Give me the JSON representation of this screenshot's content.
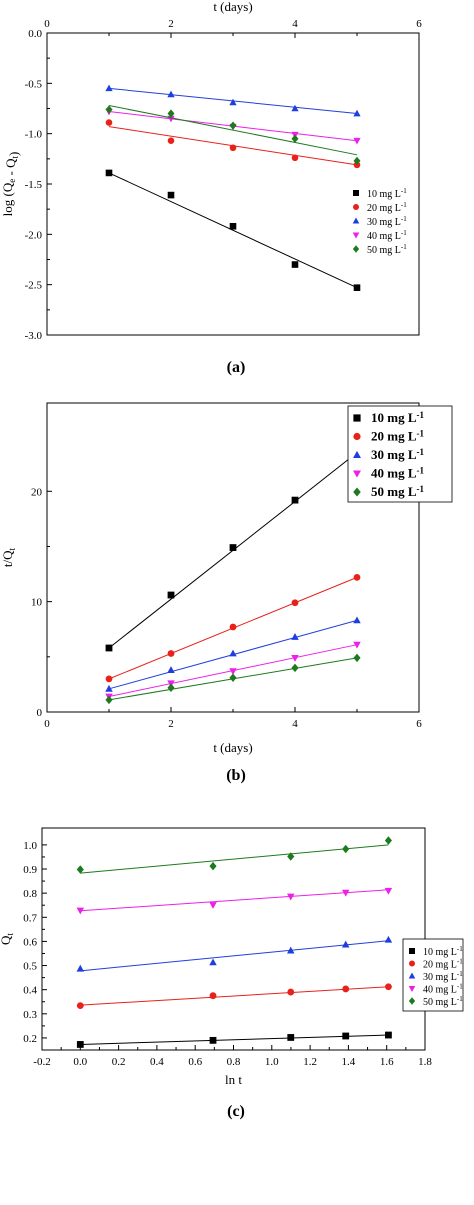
{
  "chart_data": [
    {
      "type": "scatter",
      "panel_label": "(a)",
      "xlabel": "t (days)",
      "ylabel": "log (Q_e - Q_t)",
      "ylabel_parts": [
        "log (Q",
        "e",
        " - Q",
        "t",
        ")"
      ],
      "x_axis_position": "top",
      "xlim": [
        0,
        6
      ],
      "ylim": [
        -3.0,
        0.0
      ],
      "xticks": [
        0,
        2,
        4,
        6
      ],
      "yticks": [
        0.0,
        -0.5,
        -1.0,
        -1.5,
        -2.0,
        -2.5,
        -3.0
      ],
      "ytick_labels": [
        "0.0",
        "-0.5",
        "-1.0",
        "-1.5",
        "-2.0",
        "-2.5",
        "-3.0"
      ],
      "legend_position": "right",
      "series": [
        {
          "name": "10 mg L-1",
          "unit_base": "10 mg L",
          "unit_sup": "-1",
          "marker": "square",
          "color": "#000000",
          "x": [
            1,
            2,
            3,
            4,
            5
          ],
          "y": [
            -1.39,
            -1.61,
            -1.92,
            -2.3,
            -2.53
          ],
          "fit": [
            [
              1,
              -1.39
            ],
            [
              5,
              -2.53
            ]
          ]
        },
        {
          "name": "20 mg L-1",
          "unit_base": "20 mg L",
          "unit_sup": "-1",
          "marker": "circle",
          "color": "#e8211b",
          "x": [
            1,
            2,
            3,
            4,
            5
          ],
          "y": [
            -0.89,
            -1.07,
            -1.14,
            -1.24,
            -1.31
          ],
          "fit": [
            [
              1,
              -0.93
            ],
            [
              5,
              -1.31
            ]
          ]
        },
        {
          "name": "30 mg L-1",
          "unit_base": "30 mg L",
          "unit_sup": "-1",
          "marker": "triangle-up",
          "color": "#1f3ee0",
          "x": [
            1,
            2,
            3,
            4,
            5
          ],
          "y": [
            -0.55,
            -0.61,
            -0.69,
            -0.75,
            -0.8
          ],
          "fit": [
            [
              1,
              -0.55
            ],
            [
              5,
              -0.8
            ]
          ]
        },
        {
          "name": "40 mg L-1",
          "unit_base": "40 mg L",
          "unit_sup": "-1",
          "marker": "triangle-down",
          "color": "#ee1fe8",
          "x": [
            1,
            2,
            3,
            4,
            5
          ],
          "y": [
            -0.78,
            -0.85,
            -0.93,
            -1.01,
            -1.07
          ],
          "fit": [
            [
              1,
              -0.78
            ],
            [
              5,
              -1.07
            ]
          ]
        },
        {
          "name": "50 mg L-1",
          "unit_base": "50 mg L",
          "unit_sup": "-1",
          "marker": "diamond",
          "color": "#1d7a1d",
          "x": [
            1,
            2,
            3,
            4,
            5
          ],
          "y": [
            -0.76,
            -0.8,
            -0.92,
            -1.05,
            -1.27
          ],
          "fit": [
            [
              1,
              -0.72
            ],
            [
              5,
              -1.21
            ]
          ]
        }
      ]
    },
    {
      "type": "scatter",
      "panel_label": "(b)",
      "xlabel": "t (days)",
      "ylabel": "t/Q_t",
      "ylabel_parts": [
        "t/Q",
        "t",
        "",
        "",
        ""
      ],
      "x_axis_position": "bottom",
      "xlim": [
        0,
        6
      ],
      "ylim": [
        0,
        28
      ],
      "xticks": [
        0,
        2,
        4,
        6
      ],
      "yticks": [
        0,
        10,
        20
      ],
      "ytick_labels": [
        "0",
        "10",
        "20"
      ],
      "legend_position": "top-right",
      "series": [
        {
          "name": "10 mg L-1",
          "unit_base": "10 mg L",
          "unit_sup": "-1",
          "marker": "square",
          "color": "#000000",
          "x": [
            1,
            2,
            3,
            4,
            5
          ],
          "y": [
            5.8,
            10.6,
            14.9,
            19.2,
            23.5
          ],
          "fit": [
            [
              1,
              5.8
            ],
            [
              5,
              23.5
            ]
          ]
        },
        {
          "name": "20 mg L-1",
          "unit_base": "20 mg L",
          "unit_sup": "-1",
          "marker": "circle",
          "color": "#e8211b",
          "x": [
            1,
            2,
            3,
            4,
            5
          ],
          "y": [
            3.0,
            5.3,
            7.7,
            9.9,
            12.2
          ],
          "fit": [
            [
              1,
              3.0
            ],
            [
              5,
              12.2
            ]
          ]
        },
        {
          "name": "30 mg L-1",
          "unit_base": "30 mg L",
          "unit_sup": "-1",
          "marker": "triangle-up",
          "color": "#1f3ee0",
          "x": [
            1,
            2,
            3,
            4,
            5
          ],
          "y": [
            2.1,
            3.8,
            5.3,
            6.8,
            8.3
          ],
          "fit": [
            [
              1,
              2.1
            ],
            [
              5,
              8.3
            ]
          ]
        },
        {
          "name": "40 mg L-1",
          "unit_base": "40 mg L",
          "unit_sup": "-1",
          "marker": "triangle-down",
          "color": "#ee1fe8",
          "x": [
            1,
            2,
            3,
            4,
            5
          ],
          "y": [
            1.4,
            2.6,
            3.7,
            4.9,
            6.1
          ],
          "fit": [
            [
              1,
              1.4
            ],
            [
              5,
              6.1
            ]
          ]
        },
        {
          "name": "50 mg L-1",
          "unit_base": "50 mg L",
          "unit_sup": "-1",
          "marker": "diamond",
          "color": "#1d7a1d",
          "x": [
            1,
            2,
            3,
            4,
            5
          ],
          "y": [
            1.1,
            2.2,
            3.1,
            4.0,
            4.9
          ],
          "fit": [
            [
              1,
              1.1
            ],
            [
              5,
              4.9
            ]
          ]
        }
      ]
    },
    {
      "type": "scatter",
      "panel_label": "(c)",
      "xlabel": "ln t",
      "ylabel": "Q_t",
      "ylabel_parts": [
        "Q",
        "t",
        "",
        "",
        ""
      ],
      "x_axis_position": "bottom",
      "xlim": [
        -0.2,
        1.8
      ],
      "ylim": [
        0.15,
        1.07
      ],
      "xticks": [
        -0.2,
        0.0,
        0.2,
        0.4,
        0.6,
        0.8,
        1.0,
        1.2,
        1.4,
        1.6,
        1.8
      ],
      "xtick_labels": [
        "-0.2",
        "0.0",
        "0.2",
        "0.4",
        "0.6",
        "0.8",
        "1.0",
        "1.2",
        "1.4",
        "1.6",
        "1.8"
      ],
      "yticks": [
        0.2,
        0.3,
        0.4,
        0.5,
        0.6,
        0.7,
        0.8,
        0.9,
        1.0
      ],
      "ytick_labels": [
        "0.2",
        "0.3",
        "0.4",
        "0.5",
        "0.6",
        "0.7",
        "0.8",
        "0.9",
        "1.0"
      ],
      "legend_position": "right",
      "series": [
        {
          "name": "10 mg L-1",
          "unit_base": "10 mg L",
          "unit_sup": "-1",
          "marker": "square",
          "color": "#000000",
          "x": [
            0.0,
            0.693,
            1.099,
            1.386,
            1.609
          ],
          "y": [
            0.173,
            0.19,
            0.202,
            0.208,
            0.212
          ],
          "fit": [
            [
              0.0,
              0.173
            ],
            [
              1.609,
              0.212
            ]
          ]
        },
        {
          "name": "20 mg L-1",
          "unit_base": "20 mg L",
          "unit_sup": "-1",
          "marker": "circle",
          "color": "#e8211b",
          "x": [
            0.0,
            0.693,
            1.099,
            1.386,
            1.609
          ],
          "y": [
            0.334,
            0.375,
            0.39,
            0.403,
            0.412
          ],
          "fit": [
            [
              0.0,
              0.336
            ],
            [
              1.609,
              0.412
            ]
          ]
        },
        {
          "name": "30 mg L-1",
          "unit_base": "30 mg L",
          "unit_sup": "-1",
          "marker": "triangle-up",
          "color": "#1f3ee0",
          "x": [
            0.0,
            0.693,
            1.099,
            1.386,
            1.609
          ],
          "y": [
            0.487,
            0.513,
            0.562,
            0.587,
            0.607
          ],
          "fit": [
            [
              0.0,
              0.478
            ],
            [
              1.609,
              0.603
            ]
          ]
        },
        {
          "name": "40 mg L-1",
          "unit_base": "40 mg L",
          "unit_sup": "-1",
          "marker": "triangle-down",
          "color": "#ee1fe8",
          "x": [
            0.0,
            0.693,
            1.099,
            1.386,
            1.609
          ],
          "y": [
            0.728,
            0.751,
            0.786,
            0.802,
            0.81
          ],
          "fit": [
            [
              0.0,
              0.727
            ],
            [
              1.609,
              0.814
            ]
          ]
        },
        {
          "name": "50 mg L-1",
          "unit_base": "50 mg L",
          "unit_sup": "-1",
          "marker": "diamond",
          "color": "#1d7a1d",
          "x": [
            0.0,
            0.693,
            1.099,
            1.386,
            1.609
          ],
          "y": [
            0.898,
            0.912,
            0.952,
            0.983,
            1.018
          ],
          "fit": [
            [
              0.0,
              0.883
            ],
            [
              1.609,
              1.0
            ]
          ]
        }
      ]
    }
  ]
}
